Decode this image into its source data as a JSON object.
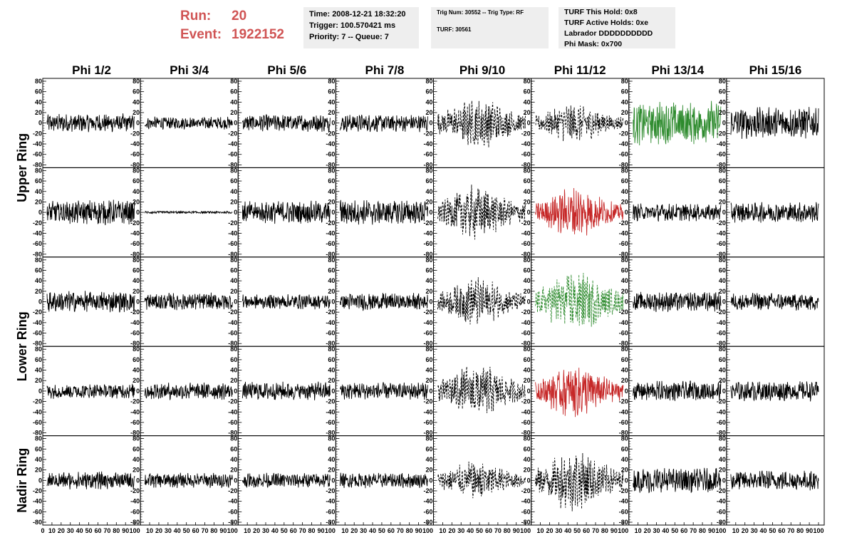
{
  "run": {
    "run_label": "Run:",
    "run_value": "20",
    "event_label": "Event:",
    "event_value": "1922152",
    "color": "#d05454"
  },
  "info_time": {
    "time": "Time: 2008-12-21 18:32:20",
    "trigger": "Trigger: 100.570421 ms",
    "priority": "Priority: 7 -- Queue: 7"
  },
  "info_trig": {
    "trig": "Trig Num: 30552 -- Trig Type: RF",
    "turf": "TURF: 30561"
  },
  "info_turf": {
    "hold": "TURF This Hold: 0x8",
    "active": "TURF Active Holds: 0xe",
    "labrador": "Labrador DDDDDDDDDD",
    "mask": "Phi Mask: 0x700"
  },
  "columns": [
    "Phi 1/2",
    "Phi 3/4",
    "Phi 5/6",
    "Phi 7/8",
    "Phi 9/10",
    "Phi 11/12",
    "Phi 13/14",
    "Phi 15/16"
  ],
  "rings": [
    "Upper Ring",
    "Lower Ring",
    "Nadir Ring"
  ],
  "y_ticks": [
    "80",
    "60",
    "40",
    "20",
    "0",
    "-20",
    "-40",
    "-60",
    "-80"
  ],
  "x_ticks": [
    "0",
    "10",
    "20",
    "30",
    "40",
    "50",
    "60",
    "70",
    "80",
    "90",
    "100"
  ],
  "chart_data": {
    "type": "line",
    "ylim": [
      -80,
      80
    ],
    "xlim": [
      0,
      100
    ],
    "grid": false,
    "panels": [
      [
        "solid",
        "solid",
        "solid",
        "solid",
        "dashed",
        "dashed",
        "green",
        "solid"
      ],
      [
        "solid",
        "flat",
        "solid",
        "solid",
        "dashed",
        "red",
        "solid",
        "solid"
      ],
      [
        "solid",
        "solid",
        "solid",
        "solid",
        "dashed",
        "green-dashed",
        "solid",
        "solid"
      ],
      [
        "solid",
        "solid",
        "solid",
        "solid",
        "dashed",
        "red",
        "solid",
        "solid"
      ],
      [
        "solid",
        "solid",
        "solid",
        "solid",
        "dashed",
        "dashed",
        "solid",
        "solid"
      ]
    ],
    "amplitudes": [
      [
        15,
        10,
        14,
        14,
        35,
        25,
        35,
        25
      ],
      [
        20,
        2,
        18,
        20,
        35,
        32,
        14,
        16
      ],
      [
        17,
        14,
        12,
        14,
        30,
        40,
        16,
        14
      ],
      [
        12,
        14,
        15,
        14,
        35,
        35,
        16,
        16
      ],
      [
        14,
        12,
        12,
        12,
        25,
        40,
        20,
        16
      ]
    ],
    "colors": {
      "black": "#000000",
      "green": "#2e8b2e",
      "red": "#c62828"
    }
  }
}
